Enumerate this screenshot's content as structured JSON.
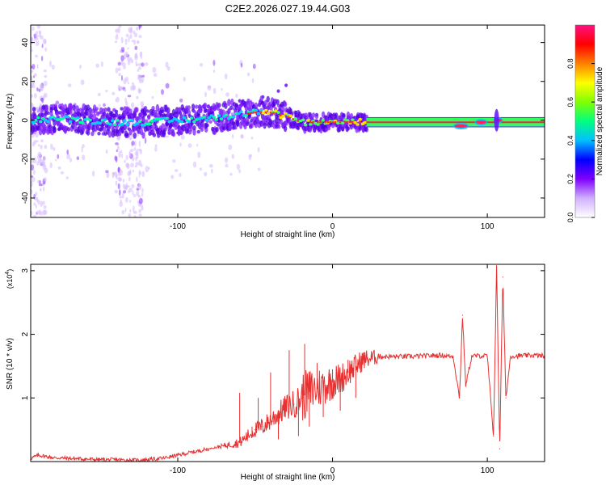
{
  "title": "C2E2.2026.027.19.44.G03",
  "chart_data": [
    {
      "type": "heatmap",
      "name": "spectrogram",
      "xlabel": "Height of straight line (km)",
      "ylabel": "Frequency (Hz)",
      "xlim": [
        -195,
        137
      ],
      "ylim": [
        -50,
        49
      ],
      "xticks": [
        -100,
        0,
        100
      ],
      "xtick_labels": [
        "-100",
        "0",
        "100"
      ],
      "yticks": [
        -40,
        -20,
        0,
        20,
        40
      ],
      "ytick_labels": [
        "-40",
        "-20",
        "0",
        "20",
        "40"
      ],
      "ridge": {
        "x": [
          -195,
          -180,
          -160,
          -140,
          -120,
          -100,
          -80,
          -60,
          -50,
          -40,
          -30,
          -20,
          -10,
          0,
          10,
          22,
          40,
          60,
          80,
          90,
          100,
          110,
          137
        ],
        "freq_hz": [
          0,
          1,
          0,
          -1,
          -1,
          0,
          1,
          3,
          4,
          4,
          2,
          -1,
          -1,
          -1,
          -1,
          -1,
          -1,
          -1,
          -2,
          -3,
          -1,
          -1,
          -1
        ]
      },
      "colorbar": {
        "label": "Normalized spectral amplitude",
        "range": [
          0,
          1
        ],
        "ticks": [
          0.0,
          0.2,
          0.4,
          0.6,
          0.8
        ],
        "tick_labels": [
          "0.0",
          "0.2",
          "0.4",
          "0.6",
          "0.8"
        ],
        "colors": [
          "#ffffff",
          "#d0b0ff",
          "#8000ff",
          "#0000ff",
          "#00c0ff",
          "#00ff80",
          "#80ff00",
          "#ffff00",
          "#ff8000",
          "#ff0000",
          "#ff1080"
        ]
      }
    },
    {
      "type": "line",
      "name": "snr",
      "xlabel": "Height of straight line (km)",
      "ylabel": "SNR (10 * v/v)",
      "y_scale_note": "(x10",
      "y_scale_exp": "4",
      "y_scale_close": ")",
      "xlim": [
        -195,
        137
      ],
      "ylim": [
        0,
        3.1
      ],
      "xticks": [
        -100,
        0,
        100
      ],
      "xtick_labels": [
        "-100",
        "0",
        "100"
      ],
      "yticks": [
        1,
        2,
        3
      ],
      "ytick_labels": [
        "1",
        "2",
        "3"
      ],
      "color": "#e83030",
      "series": [
        {
          "name": "SNR",
          "x": [
            -195,
            -190,
            -185,
            -180,
            -170,
            -160,
            -150,
            -140,
            -130,
            -120,
            -110,
            -100,
            -90,
            -80,
            -70,
            -60,
            -55,
            -50,
            -45,
            -40,
            -35,
            -30,
            -25,
            -20,
            -15,
            -10,
            -5,
            0,
            5,
            10,
            15,
            20,
            30,
            40,
            50,
            60,
            70,
            78,
            82,
            84,
            86,
            90,
            95,
            100,
            104,
            106,
            108,
            110,
            112,
            115,
            120,
            130,
            137
          ],
          "y": [
            0.05,
            0.1,
            0.08,
            0.06,
            0.05,
            0.04,
            0.03,
            0.03,
            0.02,
            0.03,
            0.05,
            0.1,
            0.15,
            0.2,
            0.25,
            0.3,
            0.4,
            0.5,
            0.55,
            0.65,
            0.75,
            0.85,
            0.9,
            1.0,
            1.1,
            1.15,
            1.2,
            1.25,
            1.3,
            1.4,
            1.5,
            1.6,
            1.65,
            1.65,
            1.65,
            1.66,
            1.67,
            1.65,
            1.0,
            2.3,
            1.2,
            1.66,
            1.66,
            1.66,
            0.4,
            3.05,
            0.2,
            2.9,
            1.0,
            1.66,
            1.66,
            1.67,
            1.66
          ],
          "spikes": [
            {
              "x": -60,
              "y": 1.08
            },
            {
              "x": -52,
              "y": 0.55
            },
            {
              "x": -48,
              "y": 1.0
            },
            {
              "x": -40,
              "y": 1.4
            },
            {
              "x": -35,
              "y": 0.35
            },
            {
              "x": -28,
              "y": 1.75
            },
            {
              "x": -22,
              "y": 0.4
            },
            {
              "x": -18,
              "y": 1.85
            },
            {
              "x": -15,
              "y": 0.55
            },
            {
              "x": -10,
              "y": 1.55
            },
            {
              "x": -6,
              "y": 0.7
            },
            {
              "x": 0,
              "y": 1.45
            },
            {
              "x": 5,
              "y": 0.8
            },
            {
              "x": 10,
              "y": 1.6
            },
            {
              "x": 15,
              "y": 1.0
            },
            {
              "x": 20,
              "y": 1.7
            }
          ]
        }
      ]
    }
  ]
}
